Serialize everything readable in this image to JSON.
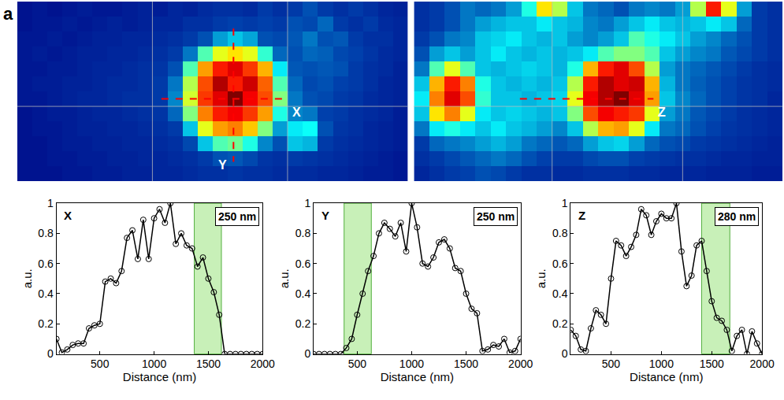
{
  "panel_label": "a",
  "chart_data": [
    {
      "type": "heatmap",
      "color": "Jet",
      "zlim": [
        0,
        1
      ],
      "xlim": [
        -0.5,
        25.5
      ],
      "ylim": [
        11.5,
        -0.5
      ],
      "xticks": [
        8.5,
        17.5
      ],
      "yticks": [
        6.5
      ],
      "grid": true,
      "tick_labels": false,
      "cells": [
        [
          0.04,
          0.05,
          0.04,
          0.05,
          0.06,
          0.05,
          0.05,
          0.06,
          0.07,
          0.06,
          0.08,
          0.07,
          0.09,
          0.1,
          0.1,
          0.09,
          0.12,
          0.1,
          0.12,
          0.15,
          0.12,
          0.1,
          0.12,
          0.1,
          0.08,
          0.07
        ],
        [
          0.04,
          0.05,
          0.05,
          0.06,
          0.05,
          0.06,
          0.07,
          0.06,
          0.07,
          0.08,
          0.08,
          0.1,
          0.1,
          0.12,
          0.13,
          0.12,
          0.13,
          0.12,
          0.15,
          0.14,
          0.18,
          0.12,
          0.1,
          0.12,
          0.09,
          0.08
        ],
        [
          0.05,
          0.05,
          0.06,
          0.05,
          0.06,
          0.07,
          0.07,
          0.08,
          0.08,
          0.09,
          0.1,
          0.12,
          0.15,
          0.25,
          0.3,
          0.26,
          0.15,
          0.14,
          0.16,
          0.2,
          0.15,
          0.16,
          0.12,
          0.1,
          0.1,
          0.08
        ],
        [
          0.05,
          0.06,
          0.05,
          0.06,
          0.07,
          0.07,
          0.08,
          0.08,
          0.09,
          0.1,
          0.12,
          0.2,
          0.45,
          0.6,
          0.65,
          0.6,
          0.42,
          0.18,
          0.15,
          0.18,
          0.17,
          0.14,
          0.13,
          0.11,
          0.09,
          0.08
        ],
        [
          0.05,
          0.05,
          0.06,
          0.06,
          0.07,
          0.08,
          0.08,
          0.09,
          0.1,
          0.11,
          0.15,
          0.45,
          0.72,
          0.85,
          0.9,
          0.82,
          0.7,
          0.35,
          0.16,
          0.15,
          0.16,
          0.15,
          0.12,
          0.1,
          0.09,
          0.07
        ],
        [
          0.05,
          0.06,
          0.06,
          0.07,
          0.07,
          0.08,
          0.09,
          0.09,
          0.1,
          0.12,
          0.2,
          0.55,
          0.8,
          0.95,
          0.85,
          0.92,
          0.78,
          0.45,
          0.18,
          0.14,
          0.15,
          0.13,
          0.12,
          0.1,
          0.08,
          0.07
        ],
        [
          0.05,
          0.05,
          0.06,
          0.07,
          0.08,
          0.08,
          0.09,
          0.1,
          0.1,
          0.12,
          0.22,
          0.58,
          0.82,
          0.9,
          1.0,
          0.88,
          0.8,
          0.5,
          0.2,
          0.15,
          0.14,
          0.12,
          0.11,
          0.09,
          0.08,
          0.07
        ],
        [
          0.04,
          0.05,
          0.06,
          0.06,
          0.07,
          0.08,
          0.08,
          0.09,
          0.1,
          0.11,
          0.18,
          0.5,
          0.75,
          0.85,
          0.88,
          0.82,
          0.72,
          0.4,
          0.22,
          0.2,
          0.13,
          0.12,
          0.1,
          0.09,
          0.08,
          0.06
        ],
        [
          0.04,
          0.05,
          0.05,
          0.06,
          0.07,
          0.07,
          0.08,
          0.08,
          0.09,
          0.1,
          0.12,
          0.3,
          0.6,
          0.72,
          0.75,
          0.68,
          0.5,
          0.25,
          0.35,
          0.38,
          0.15,
          0.11,
          0.1,
          0.08,
          0.07,
          0.06
        ],
        [
          0.04,
          0.04,
          0.05,
          0.06,
          0.06,
          0.07,
          0.07,
          0.08,
          0.08,
          0.09,
          0.1,
          0.14,
          0.3,
          0.45,
          0.48,
          0.4,
          0.22,
          0.15,
          0.3,
          0.28,
          0.12,
          0.1,
          0.09,
          0.08,
          0.07,
          0.06
        ],
        [
          0.04,
          0.04,
          0.05,
          0.05,
          0.06,
          0.06,
          0.07,
          0.07,
          0.08,
          0.08,
          0.09,
          0.1,
          0.12,
          0.15,
          0.16,
          0.14,
          0.11,
          0.1,
          0.12,
          0.11,
          0.1,
          0.09,
          0.08,
          0.07,
          0.06,
          0.05
        ],
        [
          0.04,
          0.04,
          0.04,
          0.05,
          0.05,
          0.06,
          0.06,
          0.07,
          0.07,
          0.08,
          0.08,
          0.09,
          0.1,
          0.1,
          0.11,
          0.1,
          0.1,
          0.09,
          0.09,
          0.09,
          0.08,
          0.08,
          0.07,
          0.06,
          0.06,
          0.05
        ]
      ],
      "profiles": [
        {
          "label": "X",
          "color": "red",
          "line_style": "dashed",
          "x": [
            9.1,
            17.5
          ],
          "y": [
            6,
            6
          ]
        },
        {
          "label": "Y",
          "color": "red",
          "line_style": "dashed",
          "x": [
            13.9,
            13.9
          ],
          "y": [
            1.3,
            10.2
          ]
        }
      ]
    },
    {
      "type": "heatmap",
      "color": "Jet",
      "zlim": [
        0,
        1
      ],
      "xlim": [
        -0.5,
        23.5
      ],
      "ylim": [
        11.5,
        -0.5
      ],
      "xticks": [
        8.5,
        17
      ],
      "yticks": [
        6.5
      ],
      "grid": true,
      "tick_labels": false,
      "cells": [
        [
          0.1,
          0.12,
          0.15,
          0.2,
          0.18,
          0.2,
          0.25,
          0.4,
          0.65,
          0.55,
          0.3,
          0.2,
          0.18,
          0.15,
          0.2,
          0.22,
          0.2,
          0.25,
          0.55,
          0.85,
          0.6,
          0.25,
          0.12,
          0.1
        ],
        [
          0.1,
          0.12,
          0.15,
          0.2,
          0.25,
          0.28,
          0.3,
          0.3,
          0.35,
          0.3,
          0.28,
          0.22,
          0.2,
          0.25,
          0.3,
          0.35,
          0.3,
          0.28,
          0.3,
          0.35,
          0.3,
          0.18,
          0.12,
          0.1
        ],
        [
          0.12,
          0.15,
          0.2,
          0.22,
          0.3,
          0.32,
          0.35,
          0.3,
          0.28,
          0.3,
          0.25,
          0.22,
          0.25,
          0.3,
          0.45,
          0.4,
          0.35,
          0.3,
          0.25,
          0.22,
          0.18,
          0.15,
          0.12,
          0.1
        ],
        [
          0.15,
          0.25,
          0.3,
          0.25,
          0.3,
          0.35,
          0.3,
          0.28,
          0.3,
          0.28,
          0.3,
          0.35,
          0.45,
          0.5,
          0.5,
          0.45,
          0.3,
          0.25,
          0.22,
          0.2,
          0.16,
          0.14,
          0.12,
          0.1
        ],
        [
          0.2,
          0.45,
          0.6,
          0.45,
          0.3,
          0.28,
          0.3,
          0.32,
          0.3,
          0.28,
          0.4,
          0.7,
          0.85,
          0.9,
          0.8,
          0.55,
          0.25,
          0.2,
          0.18,
          0.16,
          0.14,
          0.12,
          0.1,
          0.09
        ],
        [
          0.3,
          0.7,
          0.85,
          0.75,
          0.4,
          0.3,
          0.28,
          0.3,
          0.28,
          0.3,
          0.55,
          0.85,
          0.95,
          0.9,
          0.92,
          0.7,
          0.28,
          0.2,
          0.17,
          0.15,
          0.13,
          0.11,
          0.1,
          0.09
        ],
        [
          0.35,
          0.75,
          0.9,
          0.8,
          0.42,
          0.3,
          0.3,
          0.28,
          0.3,
          0.32,
          0.6,
          0.88,
          0.95,
          1.0,
          0.9,
          0.72,
          0.3,
          0.22,
          0.18,
          0.15,
          0.13,
          0.11,
          0.1,
          0.08
        ],
        [
          0.3,
          0.65,
          0.75,
          0.6,
          0.35,
          0.3,
          0.32,
          0.3,
          0.28,
          0.3,
          0.5,
          0.8,
          0.88,
          0.85,
          0.82,
          0.6,
          0.25,
          0.2,
          0.16,
          0.14,
          0.12,
          0.1,
          0.09,
          0.08
        ],
        [
          0.2,
          0.35,
          0.4,
          0.35,
          0.3,
          0.35,
          0.3,
          0.28,
          0.25,
          0.22,
          0.3,
          0.55,
          0.7,
          0.72,
          0.6,
          0.35,
          0.2,
          0.18,
          0.15,
          0.13,
          0.11,
          0.1,
          0.09,
          0.08
        ],
        [
          0.12,
          0.18,
          0.2,
          0.22,
          0.25,
          0.28,
          0.25,
          0.2,
          0.18,
          0.16,
          0.18,
          0.25,
          0.3,
          0.32,
          0.25,
          0.18,
          0.15,
          0.14,
          0.12,
          0.11,
          0.1,
          0.09,
          0.08,
          0.07
        ],
        [
          0.1,
          0.12,
          0.14,
          0.16,
          0.18,
          0.2,
          0.18,
          0.15,
          0.13,
          0.12,
          0.12,
          0.14,
          0.15,
          0.15,
          0.13,
          0.12,
          0.11,
          0.1,
          0.1,
          0.09,
          0.08,
          0.08,
          0.07,
          0.07
        ],
        [
          0.08,
          0.1,
          0.12,
          0.13,
          0.15,
          0.14,
          0.12,
          0.1,
          0.1,
          0.09,
          0.09,
          0.1,
          0.1,
          0.1,
          0.09,
          0.09,
          0.08,
          0.08,
          0.08,
          0.07,
          0.07,
          0.07,
          0.06,
          0.06
        ]
      ],
      "profiles": [
        {
          "label": "Z",
          "color": "red",
          "line_style": "dashed",
          "x": [
            6.4,
            15.1
          ],
          "y": [
            6,
            6
          ]
        }
      ]
    },
    {
      "type": "line",
      "title": "X",
      "xlabel": "Distance (nm)",
      "ylabel": "a.u.",
      "color": "black",
      "marker": "circle-open",
      "line_style": "solid",
      "grid": false,
      "xlim": [
        100,
        2000
      ],
      "xticks": [
        500,
        1000,
        1500,
        2000
      ],
      "ylim": [
        0,
        1
      ],
      "yticks": [
        0,
        0.2,
        0.4,
        0.6,
        0.8,
        1
      ],
      "x": [
        100,
        150,
        200,
        250,
        300,
        350,
        400,
        450,
        500,
        550,
        600,
        650,
        700,
        750,
        800,
        850,
        900,
        950,
        1000,
        1050,
        1100,
        1150,
        1200,
        1250,
        1300,
        1350,
        1400,
        1450,
        1500,
        1550,
        1600,
        1650,
        1700,
        1750,
        1800,
        1850,
        1900,
        1950,
        2000
      ],
      "values": [
        0.1,
        0.01,
        0.03,
        0.06,
        0.07,
        0.07,
        0.17,
        0.19,
        0.2,
        0.48,
        0.5,
        0.47,
        0.55,
        0.77,
        0.82,
        0.63,
        0.89,
        0.63,
        0.9,
        0.96,
        0.87,
        1.0,
        0.73,
        0.8,
        0.72,
        0.7,
        0.58,
        0.64,
        0.5,
        0.41,
        0.26,
        0,
        0,
        0,
        0,
        0,
        0,
        0,
        0
      ],
      "highlight": {
        "range": [
          1370,
          1620
        ],
        "label": "250 nm",
        "color": "#c8f0b8"
      }
    },
    {
      "type": "line",
      "title": "Y",
      "xlabel": "Distance (nm)",
      "ylabel": "a.u.",
      "color": "black",
      "marker": "circle-open",
      "line_style": "solid",
      "grid": false,
      "xlim": [
        100,
        2000
      ],
      "xticks": [
        500,
        1000,
        1500,
        2000
      ],
      "ylim": [
        0,
        1
      ],
      "yticks": [
        0,
        0.2,
        0.4,
        0.6,
        0.8,
        1
      ],
      "x": [
        100,
        150,
        200,
        250,
        300,
        350,
        400,
        450,
        500,
        550,
        600,
        650,
        700,
        750,
        800,
        850,
        900,
        950,
        1000,
        1050,
        1100,
        1150,
        1200,
        1250,
        1300,
        1350,
        1400,
        1450,
        1500,
        1550,
        1600,
        1650,
        1700,
        1750,
        1800,
        1850,
        1900,
        1950,
        2000
      ],
      "values": [
        0,
        0,
        0,
        0,
        0,
        0,
        0.04,
        0.1,
        0.26,
        0.4,
        0.55,
        0.65,
        0.8,
        0.87,
        0.83,
        0.78,
        0.87,
        0.68,
        1.0,
        0.84,
        0.6,
        0.58,
        0.64,
        0.74,
        0.76,
        0.7,
        0.57,
        0.55,
        0.4,
        0.3,
        0.27,
        0.02,
        0.03,
        0.06,
        0.05,
        0.1,
        0.01,
        0.02,
        0.1
      ],
      "highlight": {
        "range": [
          380,
          630
        ],
        "label": "250 nm",
        "color": "#c8f0b8"
      }
    },
    {
      "type": "line",
      "title": "Z",
      "xlabel": "Distance (nm)",
      "ylabel": "a.u.",
      "color": "black",
      "marker": "circle-open",
      "line_style": "solid",
      "grid": false,
      "xlim": [
        100,
        2000
      ],
      "xticks": [
        500,
        1000,
        1500,
        2000
      ],
      "ylim": [
        0,
        1
      ],
      "yticks": [
        0,
        0.2,
        0.4,
        0.6,
        0.8,
        1
      ],
      "x": [
        100,
        150,
        200,
        250,
        300,
        350,
        400,
        450,
        500,
        550,
        600,
        650,
        700,
        750,
        800,
        850,
        900,
        950,
        1000,
        1050,
        1100,
        1150,
        1200,
        1250,
        1300,
        1350,
        1400,
        1450,
        1500,
        1550,
        1600,
        1650,
        1700,
        1750,
        1800,
        1850,
        1900,
        1950,
        2000
      ],
      "values": [
        0.16,
        0.12,
        0.03,
        0.02,
        0.17,
        0.29,
        0.26,
        0.2,
        0.5,
        0.75,
        0.72,
        0.65,
        0.71,
        0.79,
        0.96,
        0.92,
        0.79,
        0.88,
        0.93,
        0.9,
        0.9,
        1.0,
        0.68,
        0.45,
        0.52,
        0.72,
        0.75,
        0.55,
        0.35,
        0.24,
        0.22,
        0.16,
        0.02,
        0.12,
        0.16,
        0.0,
        0.15,
        0.07,
        0
      ],
      "highlight": {
        "range": [
          1400,
          1680
        ],
        "label": "280 nm",
        "color": "#c8f0b8"
      }
    }
  ]
}
